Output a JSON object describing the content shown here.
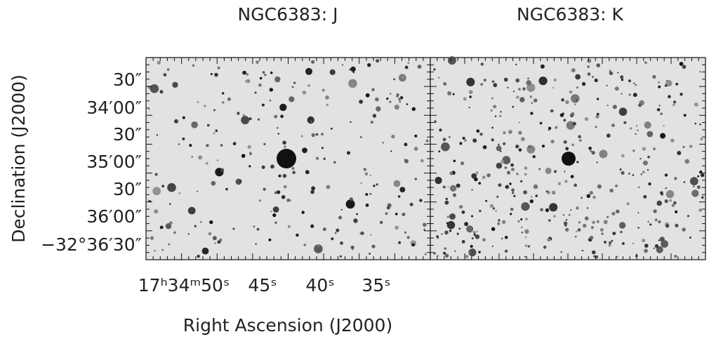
{
  "panels": [
    {
      "title": "NGC6383: J"
    },
    {
      "title": "NGC6383: K"
    }
  ],
  "y_axis": {
    "label": "Declination (J2000)",
    "ticks": [
      "30″",
      "34′00″",
      "30″",
      "35′00″",
      "30″",
      "36′00″",
      "−32°36′30″"
    ]
  },
  "x_axis": {
    "label": "Right Ascension (J2000)",
    "ticks": [
      "17ʰ34ᵐ50ˢ",
      "45ˢ",
      "40ˢ",
      "35ˢ"
    ]
  }
}
